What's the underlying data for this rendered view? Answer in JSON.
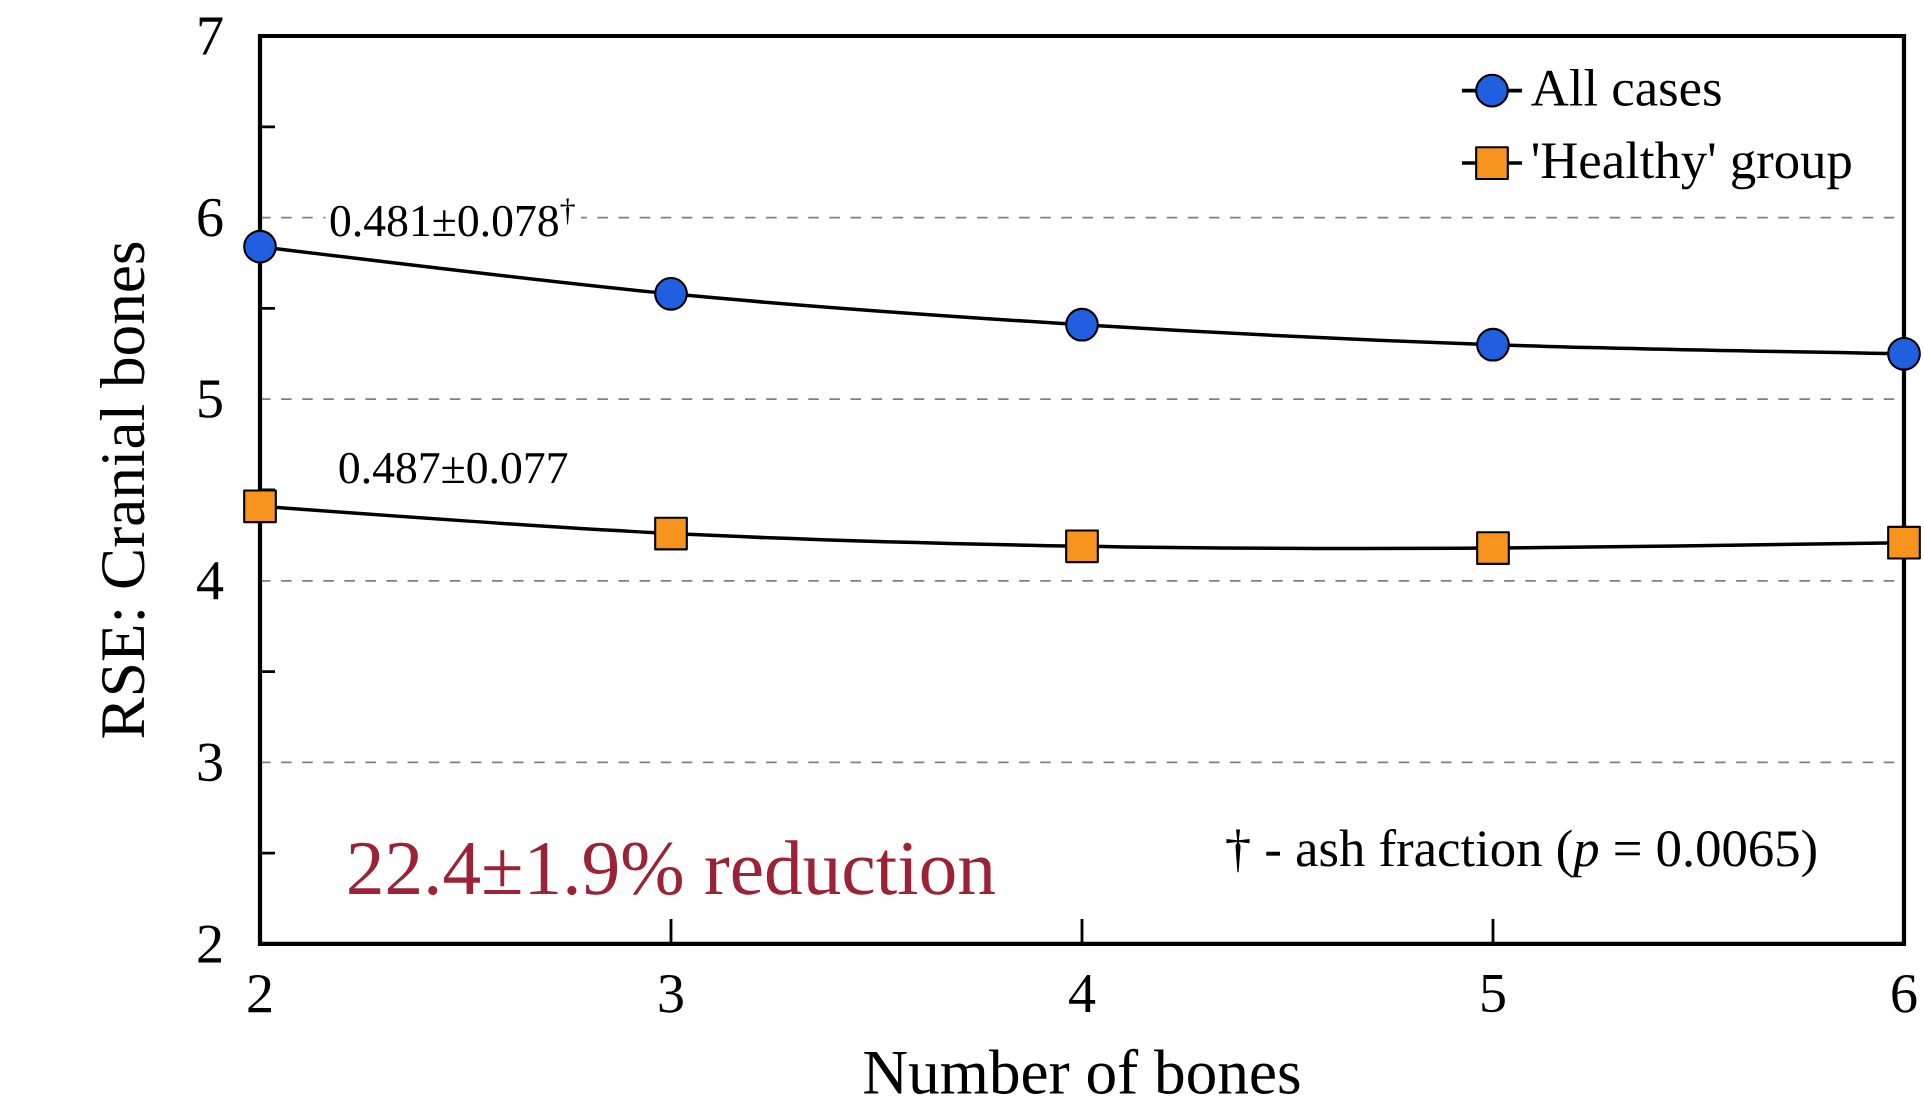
{
  "chart_data": {
    "type": "line",
    "xlabel": "Number of bones",
    "ylabel": "RSE: Cranial bones",
    "x": [
      2,
      3,
      4,
      5,
      6
    ],
    "series": [
      {
        "name": "All cases",
        "color": "#1f5fe0",
        "marker": "circle",
        "values": [
          5.84,
          5.58,
          5.41,
          5.3,
          5.25
        ]
      },
      {
        "name": "'Healthy' group",
        "color": "#f7941d",
        "marker": "square",
        "values": [
          4.41,
          4.26,
          4.19,
          4.18,
          4.21
        ]
      }
    ],
    "xlim": [
      2,
      6
    ],
    "ylim": [
      2,
      7
    ],
    "xticks": [
      2,
      3,
      4,
      5,
      6
    ],
    "yticks": [
      2,
      3,
      4,
      5,
      6,
      7
    ],
    "grid": "y",
    "legend": "top right",
    "line_style": "solid",
    "annotations": [
      "0.481±0.078$^{†}$",
      "0.487±0.077",
      "22.4±1.9% reduction",
      "† - ash fraction (*p* = 0.0065)"
    ]
  }
}
